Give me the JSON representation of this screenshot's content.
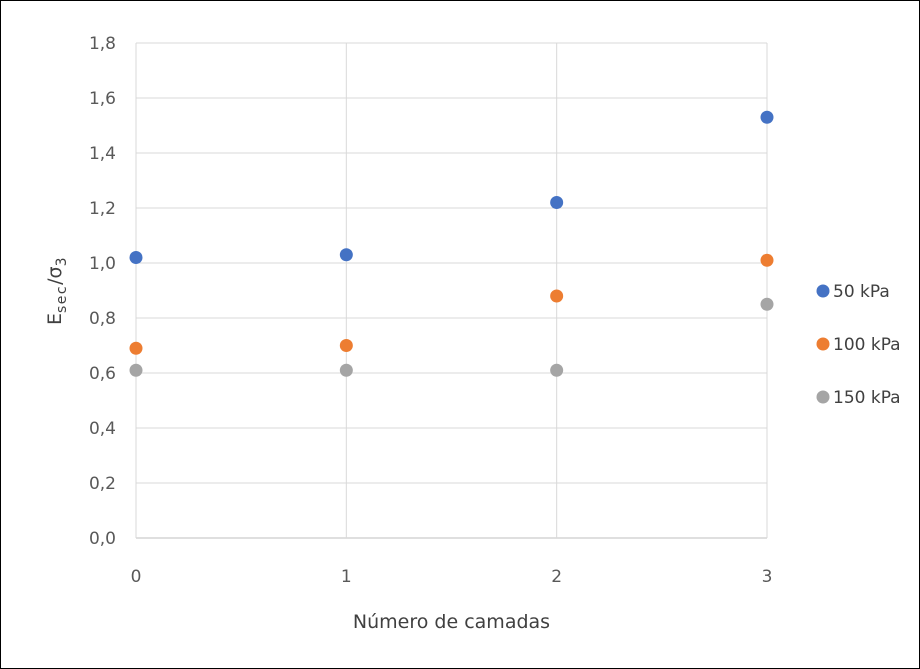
{
  "chart_data": {
    "type": "scatter",
    "xlabel": "Número de camadas",
    "ylabel": {
      "main": "E",
      "sub1": "sec",
      "slash": "/σ",
      "sub2": "3"
    },
    "xlim": [
      0,
      3
    ],
    "ylim": [
      0,
      1.8
    ],
    "x_ticks": [
      "0",
      "1",
      "2",
      "3"
    ],
    "y_ticks": [
      "0,0",
      "0,2",
      "0,4",
      "0,6",
      "0,8",
      "1,0",
      "1,2",
      "1,4",
      "1,6",
      "1,8"
    ],
    "grid": true,
    "legend_position": "right",
    "series": [
      {
        "name": "50 kPa",
        "color": "#4472C4",
        "x": [
          0,
          1,
          2,
          3
        ],
        "y": [
          1.02,
          1.03,
          1.22,
          1.53
        ]
      },
      {
        "name": "100 kPa",
        "color": "#ED7D31",
        "x": [
          0,
          1,
          2,
          3
        ],
        "y": [
          0.69,
          0.7,
          0.88,
          1.01
        ]
      },
      {
        "name": "150 kPa",
        "color": "#A5A5A5",
        "x": [
          0,
          1,
          2,
          3
        ],
        "y": [
          0.61,
          0.61,
          0.61,
          0.85
        ]
      }
    ]
  }
}
